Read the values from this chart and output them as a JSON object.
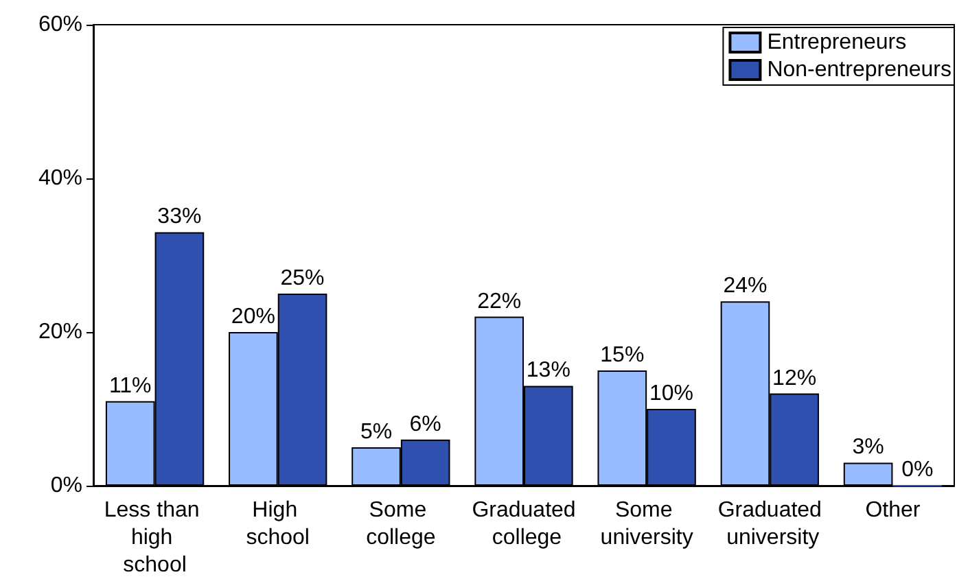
{
  "chart_data": {
    "type": "bar",
    "categories": [
      "Less than high school",
      "High school",
      "Some college",
      "Graduated college",
      "Some university",
      "Graduated university",
      "Other"
    ],
    "series": [
      {
        "name": "Entrepreneurs",
        "color": "#99bbff",
        "values": [
          11,
          20,
          5,
          22,
          15,
          24,
          3
        ],
        "value_labels": [
          "11%",
          "20%",
          "5%",
          "22%",
          "15%",
          "24%",
          "3%"
        ]
      },
      {
        "name": "Non-entrepreneurs",
        "color": "#3050b0",
        "values": [
          33,
          25,
          6,
          13,
          10,
          12,
          0
        ],
        "value_labels": [
          "33%",
          "25%",
          "6%",
          "13%",
          "10%",
          "12%",
          "0%"
        ]
      }
    ],
    "ylim": [
      0,
      60
    ],
    "yticks": [
      {
        "value": 0,
        "label": "0%"
      },
      {
        "value": 20,
        "label": "20%"
      },
      {
        "value": 40,
        "label": "40%"
      },
      {
        "value": 60,
        "label": "60%"
      }
    ],
    "grid": false,
    "legend": "top right"
  }
}
